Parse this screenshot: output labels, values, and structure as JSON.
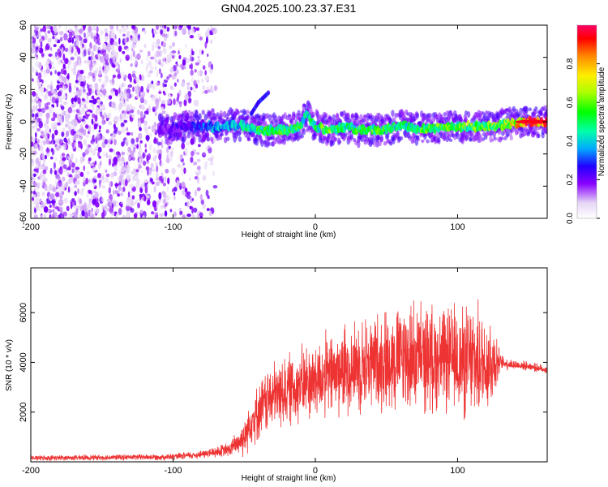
{
  "title": "GN04.2025.100.23.37.E31",
  "chart_data": [
    {
      "type": "heatmap",
      "xlabel": "Height of straight line (km)",
      "ylabel": "Frequency (Hz)",
      "xlim": [
        -200,
        163
      ],
      "ylim": [
        -60,
        60
      ],
      "x_ticks": [
        -200,
        -100,
        0,
        100
      ],
      "y_ticks": [
        -60,
        -40,
        -20,
        0,
        20,
        40,
        60
      ],
      "colorbar": {
        "label": "Normalized spectral amplitude",
        "range": [
          0,
          1
        ],
        "ticks": [
          0.0,
          0.2,
          0.4,
          0.6,
          0.8
        ],
        "colors": [
          "#ffffff",
          "#e6d6f5",
          "#8800ff",
          "#2200ff",
          "#00aaff",
          "#00ffaa",
          "#00ff00",
          "#aaff00",
          "#ffee00",
          "#ff8800",
          "#ff0000",
          "#ff0066"
        ]
      },
      "noise_region_x": [
        -200,
        -70
      ],
      "signal_centerline": [
        {
          "x": -110,
          "y": -5,
          "amp": 0.2
        },
        {
          "x": -90,
          "y": -3,
          "amp": 0.25
        },
        {
          "x": -70,
          "y": -3,
          "amp": 0.4
        },
        {
          "x": -55,
          "y": -2,
          "amp": 0.45
        },
        {
          "x": -45,
          "y": -3,
          "amp": 0.5
        },
        {
          "x": -40,
          "y": -5,
          "amp": 0.55
        },
        {
          "x": -30,
          "y": -5,
          "amp": 0.55
        },
        {
          "x": -20,
          "y": -5,
          "amp": 0.6
        },
        {
          "x": -10,
          "y": -3,
          "amp": 0.55
        },
        {
          "x": -7,
          "y": 5,
          "amp": 0.5
        },
        {
          "x": 0,
          "y": -3,
          "amp": 0.55
        },
        {
          "x": 10,
          "y": -5,
          "amp": 0.65
        },
        {
          "x": 20,
          "y": -3,
          "amp": 0.5
        },
        {
          "x": 30,
          "y": -5,
          "amp": 0.6
        },
        {
          "x": 50,
          "y": -5,
          "amp": 0.6
        },
        {
          "x": 60,
          "y": -2,
          "amp": 0.5
        },
        {
          "x": 70,
          "y": -4,
          "amp": 0.55
        },
        {
          "x": 80,
          "y": -4,
          "amp": 0.6
        },
        {
          "x": 100,
          "y": -3,
          "amp": 0.6
        },
        {
          "x": 120,
          "y": -3,
          "amp": 0.65
        },
        {
          "x": 130,
          "y": -2,
          "amp": 0.6
        },
        {
          "x": 150,
          "y": 0,
          "amp": 0.95
        },
        {
          "x": 163,
          "y": 0,
          "amp": 0.95
        }
      ],
      "side_branch": [
        {
          "x": -45,
          "y": 5
        },
        {
          "x": -40,
          "y": 12
        },
        {
          "x": -33,
          "y": 18
        }
      ]
    },
    {
      "type": "line",
      "xlabel": "Height of straight line (km)",
      "ylabel": "SNR (10 * v/v)",
      "xlim": [
        -200,
        163
      ],
      "ylim": [
        0,
        7800
      ],
      "x_ticks": [
        -200,
        -100,
        0,
        100
      ],
      "y_ticks": [
        2000,
        4000,
        6000
      ],
      "series": [
        {
          "color": "#ee3333",
          "envelope": {
            "x": [
              -200,
              -100,
              -80,
              -60,
              -50,
              -45,
              -40,
              -35,
              -30,
              -20,
              -10,
              0,
              10,
              20,
              30,
              40,
              50,
              60,
              70,
              80,
              90,
              100,
              105,
              110,
              115,
              120,
              125,
              130,
              140,
              150,
              163
            ],
            "mean": [
              150,
              200,
              300,
              500,
              1000,
              1700,
              2000,
              2400,
              2600,
              2900,
              3100,
              3300,
              3500,
              3700,
              3900,
              4000,
              4100,
              4200,
              4200,
              4200,
              4100,
              4100,
              4000,
              4000,
              4000,
              4000,
              4100,
              4000,
              3900,
              3850,
              3700
            ],
            "spread": [
              120,
              150,
              200,
              350,
              900,
              1200,
              1300,
              1500,
              1600,
              1700,
              1800,
              1900,
              2000,
              2100,
              2200,
              2300,
              2400,
              2600,
              2600,
              2500,
              2400,
              2600,
              2700,
              2800,
              2600,
              2500,
              2300,
              350,
              250,
              200,
              200
            ]
          }
        }
      ]
    }
  ]
}
